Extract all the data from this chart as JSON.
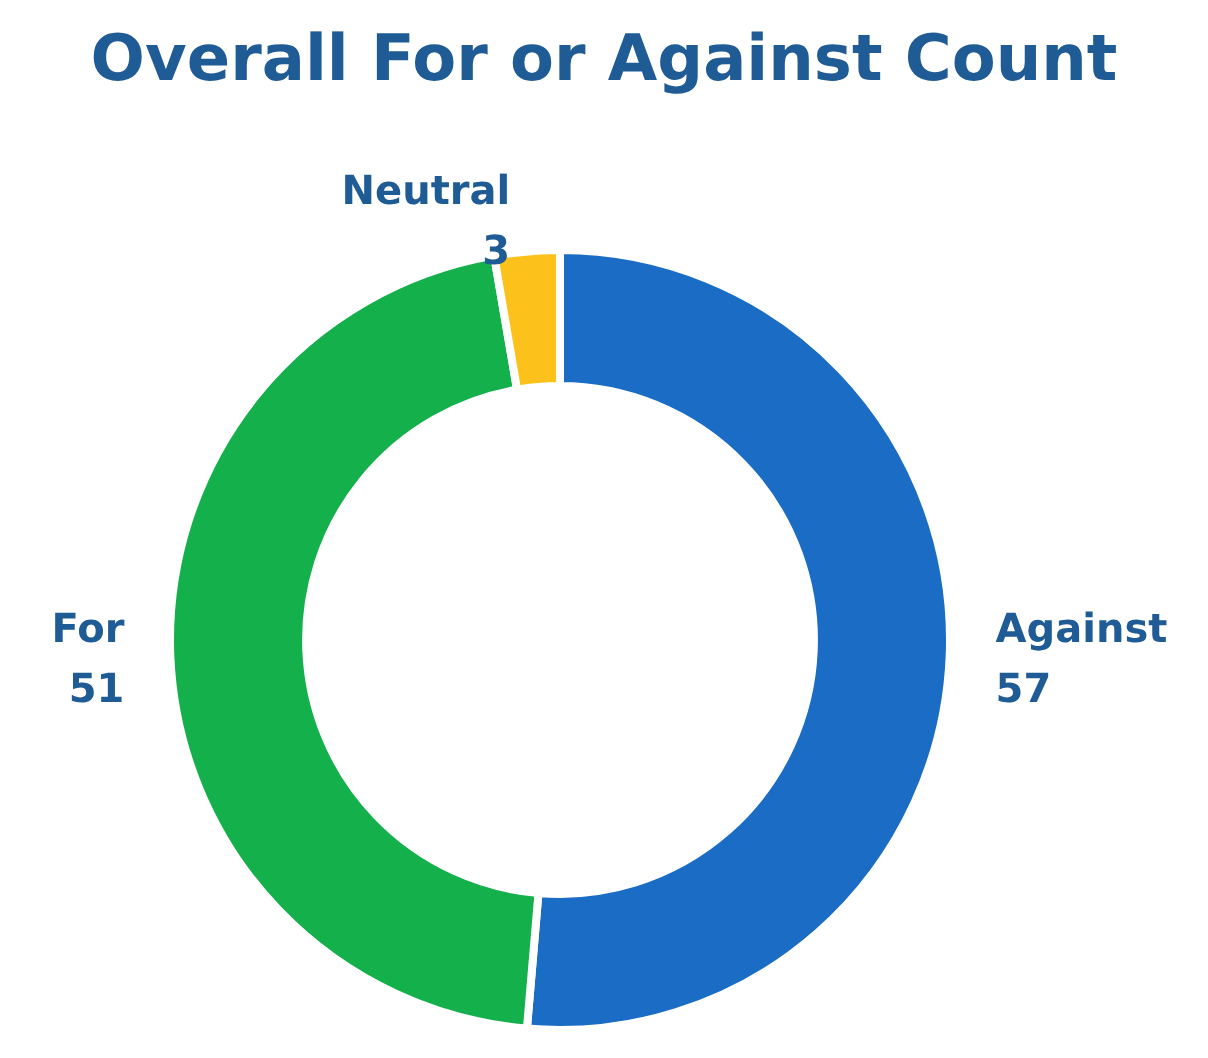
{
  "chart_data": {
    "type": "donut",
    "title": "Overall For or Against Count",
    "categories": [
      "Against",
      "For",
      "Neutral"
    ],
    "values": [
      57,
      51,
      3
    ],
    "colors": [
      "#1a6cc4",
      "#14b04c",
      "#fcc21b"
    ],
    "data_labels": true,
    "legend": false
  }
}
